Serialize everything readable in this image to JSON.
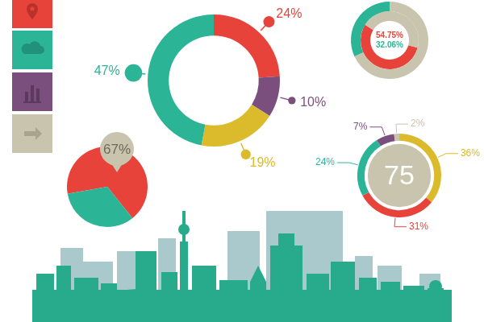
{
  "chart_data": [
    {
      "type": "doughnut",
      "values": [
        24,
        10,
        19,
        47
      ],
      "value_labels": [
        "24%",
        "10%",
        "19%",
        "47%"
      ],
      "colors": [
        "#e8433a",
        "#7a4f7d",
        "#dbbb2c",
        "#2bb596"
      ],
      "data_labels": true
    },
    {
      "type": "doughnut",
      "series": [
        {
          "values": [
            32.06,
            67.94
          ],
          "value_labels": [
            "32.06%",
            null
          ],
          "colors": [
            "#2bb596",
            "#c9c4ad"
          ]
        },
        {
          "values": [
            54.75,
            45.25
          ],
          "value_labels": [
            "54.75%",
            null
          ],
          "colors": [
            "#e8433a",
            "#c9c4ad"
          ]
        }
      ],
      "data_labels": true
    },
    {
      "type": "pie",
      "values": [
        67,
        33
      ],
      "value_labels": [
        "67%",
        null
      ],
      "colors": [
        "#e8433a",
        "#2bb596"
      ],
      "data_labels": true
    },
    {
      "type": "doughnut",
      "values": [
        36,
        31,
        24,
        7,
        2
      ],
      "value_labels": [
        "36%",
        "31%",
        "24%",
        "7%",
        "2%"
      ],
      "colors": [
        "#dbbb2c",
        "#e8433a",
        "#2bb596",
        "#7a4f7d",
        "#c9c4ad"
      ],
      "annotations": [
        "75"
      ],
      "data_labels": true
    }
  ]
}
